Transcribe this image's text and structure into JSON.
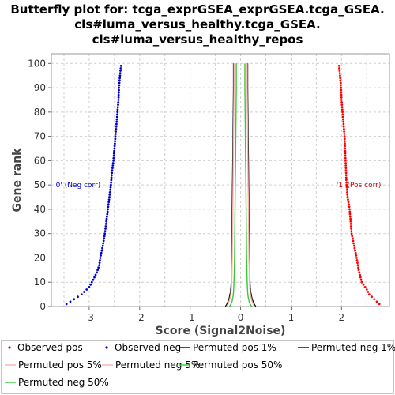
{
  "chart_data": {
    "type": "line",
    "title_lines": [
      "Butterfly plot for: tcga_exprGSEA_exprGSEA.tcga_GSEA.",
      "cls#luma_versus_healthy.tcga_GSEA.",
      "cls#luma_versus_healthy_repos"
    ],
    "xlabel": "Score (Signal2Noise)",
    "ylabel": "Gene rank",
    "xlim": [
      -3.75,
      2.95
    ],
    "ylim": [
      0,
      104
    ],
    "xticks": [
      -3,
      -2,
      -1,
      0,
      1,
      2
    ],
    "yticks": [
      0,
      10,
      20,
      30,
      40,
      50,
      60,
      70,
      80,
      90,
      100
    ],
    "grid": true,
    "annotations": [
      {
        "text": "'0' (Neg corr)",
        "x": -3.7,
        "y": 50,
        "color": "#0000cc"
      },
      {
        "text": "'1' (Pos corr)",
        "x": 1.9,
        "y": 50,
        "color": "#cc0000"
      }
    ],
    "series": [
      {
        "name": "Observed pos",
        "color": "#ff0000",
        "style": "dots",
        "y": [
          1,
          3,
          5,
          7,
          10,
          15,
          20,
          25,
          30,
          35,
          40,
          45,
          50,
          55,
          60,
          65,
          70,
          75,
          80,
          85,
          90,
          95,
          99
        ],
        "x": [
          2.75,
          2.65,
          2.55,
          2.5,
          2.4,
          2.34,
          2.3,
          2.25,
          2.2,
          2.18,
          2.16,
          2.12,
          2.1,
          2.09,
          2.08,
          2.07,
          2.06,
          2.04,
          2.02,
          2.0,
          1.99,
          1.97,
          1.95
        ]
      },
      {
        "name": "Observed neg",
        "color": "#0000cc",
        "style": "dots",
        "y": [
          1,
          3,
          5,
          8,
          11,
          14,
          17,
          20,
          25,
          30,
          35,
          40,
          45,
          50,
          55,
          60,
          65,
          70,
          75,
          80,
          85,
          90,
          95,
          99
        ],
        "x": [
          -3.45,
          -3.3,
          -3.15,
          -3.0,
          -2.92,
          -2.85,
          -2.8,
          -2.78,
          -2.73,
          -2.69,
          -2.66,
          -2.63,
          -2.6,
          -2.57,
          -2.55,
          -2.52,
          -2.5,
          -2.48,
          -2.46,
          -2.44,
          -2.42,
          -2.41,
          -2.39,
          -2.37
        ]
      },
      {
        "name": "Permuted pos 1%",
        "color": "#000000",
        "style": "line",
        "y": [
          0,
          1,
          2,
          3,
          4,
          5,
          6,
          8,
          10,
          15,
          20,
          30,
          40,
          50,
          60,
          70,
          80,
          90,
          100
        ],
        "x": [
          0.3,
          0.27,
          0.25,
          0.23,
          0.22,
          0.21,
          0.2,
          0.19,
          0.185,
          0.18,
          0.175,
          0.17,
          0.165,
          0.16,
          0.155,
          0.15,
          0.145,
          0.14,
          0.14
        ]
      },
      {
        "name": "Permuted neg 1%",
        "color": "#000000",
        "style": "line",
        "y": [
          0,
          1,
          2,
          3,
          4,
          5,
          6,
          8,
          10,
          15,
          20,
          30,
          40,
          50,
          60,
          70,
          80,
          90,
          100
        ],
        "x": [
          -0.3,
          -0.27,
          -0.25,
          -0.23,
          -0.22,
          -0.21,
          -0.2,
          -0.19,
          -0.185,
          -0.18,
          -0.175,
          -0.17,
          -0.165,
          -0.16,
          -0.155,
          -0.15,
          -0.145,
          -0.14,
          -0.14
        ]
      },
      {
        "name": "Permuted pos 5%",
        "color": "#ffb0b0",
        "style": "line",
        "y": [
          0,
          1,
          2,
          3,
          4,
          5,
          6,
          8,
          10,
          15,
          20,
          30,
          40,
          50,
          60,
          70,
          80,
          90,
          100
        ],
        "x": [
          0.28,
          0.25,
          0.23,
          0.215,
          0.205,
          0.195,
          0.19,
          0.18,
          0.175,
          0.17,
          0.165,
          0.16,
          0.155,
          0.15,
          0.145,
          0.14,
          0.135,
          0.13,
          0.13
        ]
      },
      {
        "name": "Permuted neg 5%",
        "color": "#ffb0b0",
        "style": "line",
        "y": [
          0,
          1,
          2,
          3,
          4,
          5,
          6,
          8,
          10,
          15,
          20,
          30,
          40,
          50,
          60,
          70,
          80,
          90,
          100
        ],
        "x": [
          -0.28,
          -0.25,
          -0.23,
          -0.215,
          -0.205,
          -0.195,
          -0.19,
          -0.18,
          -0.175,
          -0.17,
          -0.165,
          -0.16,
          -0.155,
          -0.15,
          -0.145,
          -0.14,
          -0.135,
          -0.13,
          -0.13
        ]
      },
      {
        "name": "Permuted pos 50%",
        "color": "#33cc33",
        "style": "line",
        "y": [
          0,
          1,
          2,
          3,
          4,
          5,
          6,
          8,
          10,
          15,
          20,
          30,
          40,
          50,
          60,
          70,
          80,
          90,
          100
        ],
        "x": [
          0.22,
          0.19,
          0.17,
          0.16,
          0.15,
          0.145,
          0.14,
          0.135,
          0.13,
          0.125,
          0.12,
          0.115,
          0.11,
          0.105,
          0.1,
          0.095,
          0.09,
          0.085,
          0.085
        ]
      },
      {
        "name": "Permuted neg 50%",
        "color": "#33cc33",
        "style": "line",
        "y": [
          0,
          1,
          2,
          3,
          4,
          5,
          6,
          8,
          10,
          15,
          20,
          30,
          40,
          50,
          60,
          70,
          80,
          90,
          100
        ],
        "x": [
          -0.22,
          -0.19,
          -0.17,
          -0.16,
          -0.15,
          -0.145,
          -0.14,
          -0.135,
          -0.13,
          -0.125,
          -0.12,
          -0.115,
          -0.11,
          -0.105,
          -0.1,
          -0.095,
          -0.09,
          -0.085,
          -0.085
        ]
      }
    ],
    "legend": [
      {
        "label": "Observed pos",
        "color": "#ff0000",
        "marker": "dot"
      },
      {
        "label": "Observed neg",
        "color": "#0000cc",
        "marker": "dot"
      },
      {
        "label": "Permuted pos 1%",
        "color": "#000000",
        "marker": "line"
      },
      {
        "label": "Permuted neg 1%",
        "color": "#000000",
        "marker": "line"
      },
      {
        "label": "Permuted pos 5%",
        "color": "#ffb0b0",
        "marker": "line"
      },
      {
        "label": "Permuted neg 5%",
        "color": "#ffb0b0",
        "marker": "line"
      },
      {
        "label": "Permuted pos 50%",
        "color": "#33cc33",
        "marker": "line"
      },
      {
        "label": "Permuted neg 50%",
        "color": "#33cc33",
        "marker": "line"
      }
    ]
  }
}
